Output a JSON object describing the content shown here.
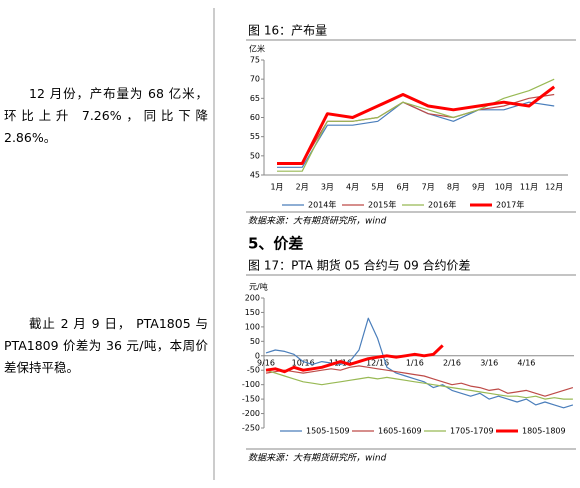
{
  "paragraphs": [
    "12 月份，产布量为 68 亿米，环比上升 7.26%，同比下降 2.86%。",
    "截止 2 月 9 日， PTA1805 与 PTA1809 价差为 36 元/吨，本周价差保持平稳。"
  ],
  "section_heading": "5、价差",
  "chart_data": [
    {
      "type": "line",
      "title": "图 16：产布量",
      "y_label": "亿米",
      "source": "数据来源：大有期货研究所，wind",
      "categories": [
        "1月",
        "2月",
        "3月",
        "4月",
        "5月",
        "6月",
        "7月",
        "8月",
        "9月",
        "10月",
        "11月",
        "12月"
      ],
      "ylim": [
        45,
        75
      ],
      "yticks": [
        45,
        50,
        55,
        60,
        65,
        70,
        75
      ],
      "legend": "bottom",
      "series": [
        {
          "name": "2014年",
          "color": "#4a7ebb",
          "width": 1.2,
          "values": [
            47,
            47,
            58,
            58,
            59,
            64,
            61,
            59,
            62,
            62,
            64,
            63
          ]
        },
        {
          "name": "2015年",
          "color": "#be4b48",
          "width": 1.2,
          "values": [
            48,
            48,
            59,
            59,
            60,
            64,
            61,
            60,
            62,
            63,
            65,
            66
          ]
        },
        {
          "name": "2016年",
          "color": "#98b954",
          "width": 1.2,
          "values": [
            46,
            46,
            59,
            59,
            60,
            64,
            62,
            60,
            62,
            65,
            67,
            70
          ]
        },
        {
          "name": "2017年",
          "color": "#ff0000",
          "width": 3,
          "values": [
            48,
            48,
            61,
            60,
            63,
            66,
            63,
            62,
            63,
            64,
            63,
            68
          ]
        }
      ]
    },
    {
      "type": "line",
      "title": "图 17：PTA 期货 05 合约与 09 合约价差",
      "y_label": "元/吨",
      "source": "数据来源：大有期货研究所，wind",
      "categories": [
        "9/16",
        null,
        null,
        null,
        "10/16",
        null,
        null,
        null,
        "11/16",
        null,
        null,
        null,
        "12/16",
        null,
        null,
        null,
        "1/16",
        null,
        null,
        null,
        "2/16",
        null,
        null,
        null,
        "3/16",
        null,
        null,
        null,
        "4/16",
        null,
        null,
        null,
        null,
        null
      ],
      "ylim": [
        -250,
        200
      ],
      "yticks": [
        -250,
        -200,
        -150,
        -100,
        -50,
        0,
        50,
        100,
        150,
        200
      ],
      "legend": "bottom",
      "series": [
        {
          "name": "1505-1509",
          "color": "#4a7ebb",
          "width": 1.2,
          "values": [
            10,
            20,
            15,
            5,
            -20,
            -30,
            -20,
            -25,
            -30,
            -20,
            20,
            130,
            60,
            -40,
            -60,
            -70,
            -80,
            -90,
            -110,
            -100,
            -120,
            -130,
            -140,
            -130,
            -150,
            -140,
            -150,
            -160,
            -150,
            -170,
            -160,
            -170,
            -180,
            -170
          ]
        },
        {
          "name": "1605-1609",
          "color": "#be4b48",
          "width": 1.2,
          "values": [
            -60,
            -55,
            -50,
            -55,
            -60,
            -55,
            -50,
            -45,
            -50,
            -40,
            -35,
            -40,
            -45,
            -50,
            -55,
            -60,
            -65,
            -70,
            -80,
            -90,
            -100,
            -95,
            -105,
            -110,
            -120,
            -115,
            -130,
            -125,
            -120,
            -130,
            -140,
            -130,
            -120,
            -110
          ]
        },
        {
          "name": "1705-1709",
          "color": "#98b954",
          "width": 1.2,
          "values": [
            -50,
            -60,
            -70,
            -80,
            -90,
            -95,
            -100,
            -95,
            -90,
            -85,
            -80,
            -75,
            -80,
            -75,
            -80,
            -85,
            -90,
            -95,
            -100,
            -105,
            -110,
            -115,
            -120,
            -125,
            -130,
            -135,
            -140,
            -140,
            -145,
            -140,
            -150,
            -145,
            -150,
            -150
          ]
        },
        {
          "name": "1805-1809",
          "color": "#ff0000",
          "width": 3,
          "values": [
            -50,
            -45,
            -55,
            -40,
            -50,
            -45,
            -40,
            -30,
            -20,
            -30,
            -20,
            -10,
            -5,
            0,
            -5,
            0,
            5,
            0,
            5,
            36,
            null,
            null,
            null,
            null,
            null,
            null,
            null,
            null,
            null,
            null,
            null,
            null,
            null,
            null
          ]
        }
      ]
    }
  ]
}
